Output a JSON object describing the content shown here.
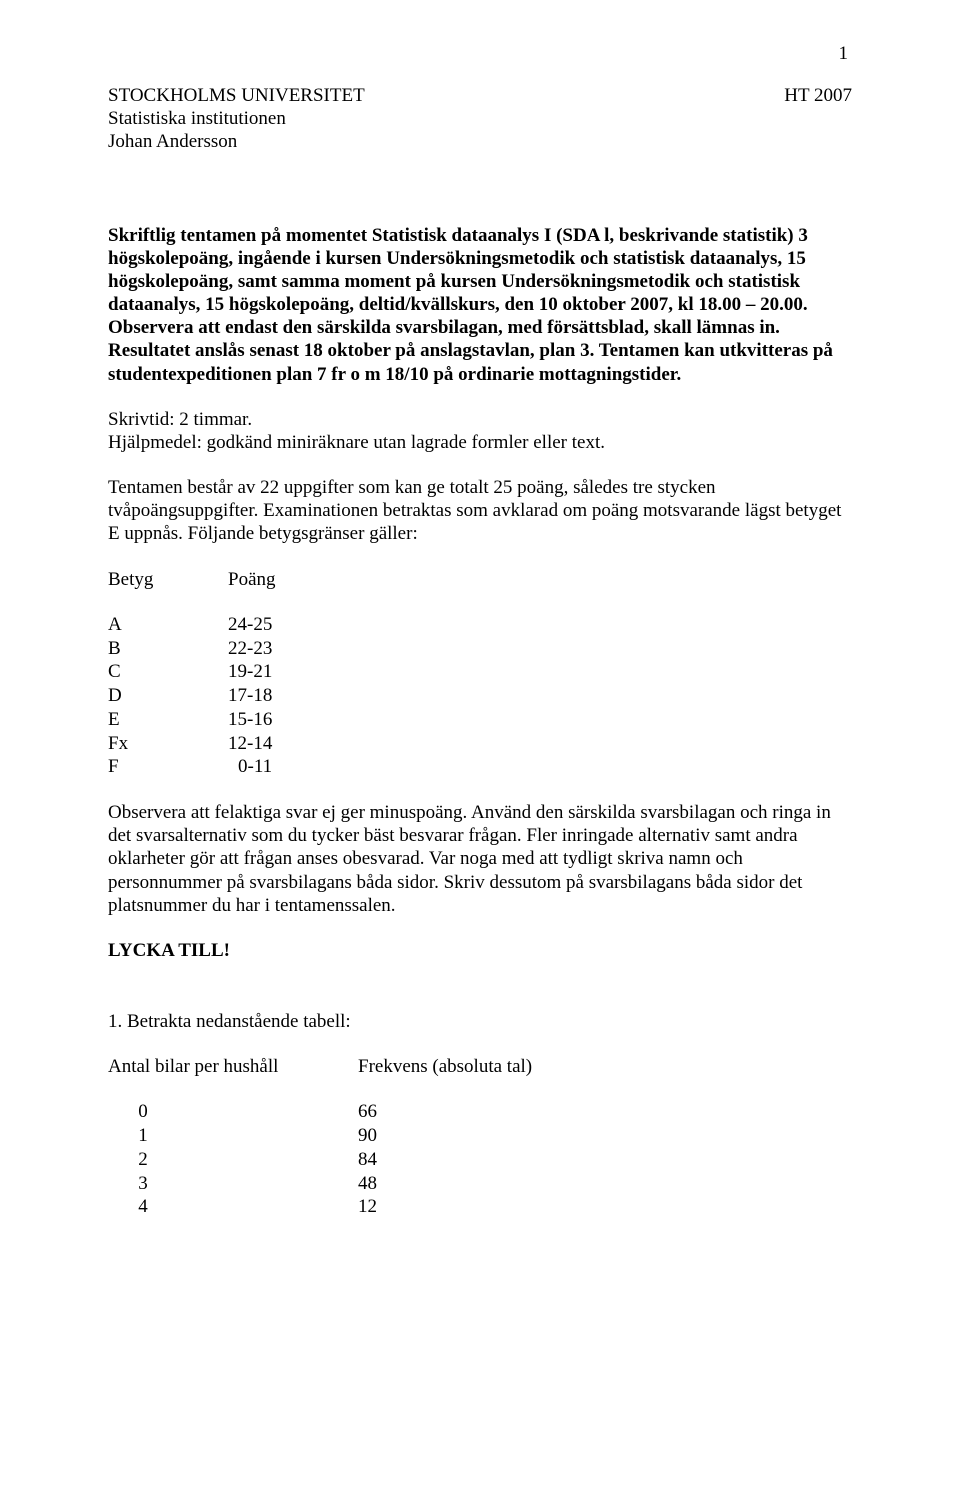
{
  "page_number": "1",
  "header": {
    "university": "STOCKHOLMS UNIVERSITET",
    "term": "HT 2007",
    "institution": "Statistiska institutionen",
    "author": "Johan Andersson"
  },
  "intro": "Skriftlig tentamen på momentet Statistisk dataanalys I (SDA l, beskrivande statistik) 3 högskolepoäng, ingående i kursen Undersökningsmetodik och statistisk dataanalys, 15 högskolepoäng, samt samma moment på kursen Undersökningsmetodik och statistisk dataanalys, 15 högskolepoäng, deltid/kvällskurs, den 10 oktober 2007, kl 18.00 – 20.00. Observera att endast den särskilda svarsbilagan, med försättsblad, skall lämnas in. Resultatet anslås senast 18 oktober på anslagstavlan, plan 3. Tentamen kan utkvitteras på studentexpeditionen plan 7 fr o m 18/10 på ordinarie mottagningstider.",
  "time_aids": {
    "skrivtid": "Skrivtid: 2 timmar.",
    "hjalpmedel": "Hjälpmedel: godkänd miniräknare utan lagrade formler eller text."
  },
  "scoring": "Tentamen består av 22 uppgifter som kan ge totalt 25 poäng, således tre stycken tvåpoängsuppgifter. Examinationen betraktas som avklarad om poäng motsvarande lägst betyget E uppnås. Följande betygsgränser gäller:",
  "grades": {
    "head_betyg": "Betyg",
    "head_poang": "Poäng",
    "rows": [
      {
        "g": "A",
        "p": "24-25"
      },
      {
        "g": "B",
        "p": "22-23"
      },
      {
        "g": "C",
        "p": "19-21"
      },
      {
        "g": "D",
        "p": "17-18"
      },
      {
        "g": "E",
        "p": "15-16"
      },
      {
        "g": "Fx",
        "p": "12-14"
      },
      {
        "g": "F",
        "p": "  0-11"
      }
    ]
  },
  "instructions": "Observera att felaktiga svar ej ger minuspoäng. Använd den särskilda svarsbilagan och ringa in det svarsalternativ som du tycker bäst besvarar frågan. Fler inringade alternativ samt andra oklarheter gör att frågan anses obesvarad. Var noga med att tydligt skriva namn och personnummer på svarsbilagans båda sidor. Skriv dessutom på svarsbilagans båda sidor det platsnummer du har i tentamenssalen.",
  "good_luck": "LYCKA TILL!",
  "q1": {
    "prompt": "1. Betrakta nedanstående tabell:",
    "head_left": "Antal bilar per hushåll",
    "head_right": "Frekvens (absoluta tal)",
    "rows": [
      {
        "n": "0",
        "f": "66"
      },
      {
        "n": "1",
        "f": "90"
      },
      {
        "n": "2",
        "f": "84"
      },
      {
        "n": "3",
        "f": "48"
      },
      {
        "n": "4",
        "f": "12"
      }
    ]
  }
}
